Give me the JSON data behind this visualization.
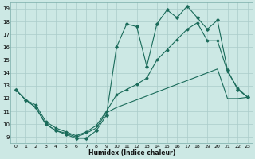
{
  "xlabel": "Humidex (Indice chaleur)",
  "x_ticks": [
    0,
    1,
    2,
    3,
    4,
    5,
    6,
    7,
    8,
    9,
    10,
    11,
    12,
    13,
    14,
    15,
    16,
    17,
    18,
    19,
    20,
    21,
    22,
    23
  ],
  "y_ticks": [
    9,
    10,
    11,
    12,
    13,
    14,
    15,
    16,
    17,
    18,
    19
  ],
  "xlim": [
    -0.5,
    23.5
  ],
  "ylim": [
    8.5,
    19.5
  ],
  "bg_color": "#cce8e4",
  "grid_color": "#aaccca",
  "line_color": "#1a6b5a",
  "series1_x": [
    0,
    1,
    2,
    3,
    4,
    5,
    6,
    7,
    8,
    9,
    10,
    11,
    12,
    13,
    14,
    15,
    16,
    17,
    18,
    19,
    20,
    21,
    22,
    23
  ],
  "series1_y": [
    12.7,
    11.9,
    11.3,
    10.0,
    9.5,
    9.2,
    8.9,
    8.9,
    9.5,
    10.7,
    16.0,
    17.8,
    17.6,
    14.5,
    17.8,
    18.9,
    18.3,
    19.2,
    18.3,
    17.4,
    18.1,
    14.2,
    12.7,
    12.1
  ],
  "series2_x": [
    0,
    1,
    2,
    3,
    4,
    5,
    6,
    7,
    8,
    9,
    10,
    11,
    12,
    13,
    14,
    15,
    16,
    17,
    18,
    19,
    20,
    21,
    22,
    23
  ],
  "series2_y": [
    12.7,
    11.9,
    11.3,
    10.0,
    9.5,
    9.3,
    9.0,
    9.3,
    9.7,
    10.9,
    11.3,
    11.6,
    11.9,
    12.2,
    12.5,
    12.8,
    13.1,
    13.4,
    13.7,
    14.0,
    14.3,
    12.0,
    12.0,
    12.1
  ],
  "series3_x": [
    0,
    1,
    2,
    3,
    4,
    5,
    6,
    7,
    8,
    9,
    10,
    11,
    12,
    13,
    14,
    15,
    16,
    17,
    18,
    19,
    20,
    21,
    22,
    23
  ],
  "series3_y": [
    12.7,
    11.9,
    11.5,
    10.2,
    9.7,
    9.4,
    9.1,
    9.4,
    9.9,
    11.0,
    12.3,
    12.7,
    13.1,
    13.6,
    15.0,
    15.8,
    16.6,
    17.4,
    17.9,
    16.5,
    16.5,
    14.1,
    12.8,
    12.1
  ]
}
